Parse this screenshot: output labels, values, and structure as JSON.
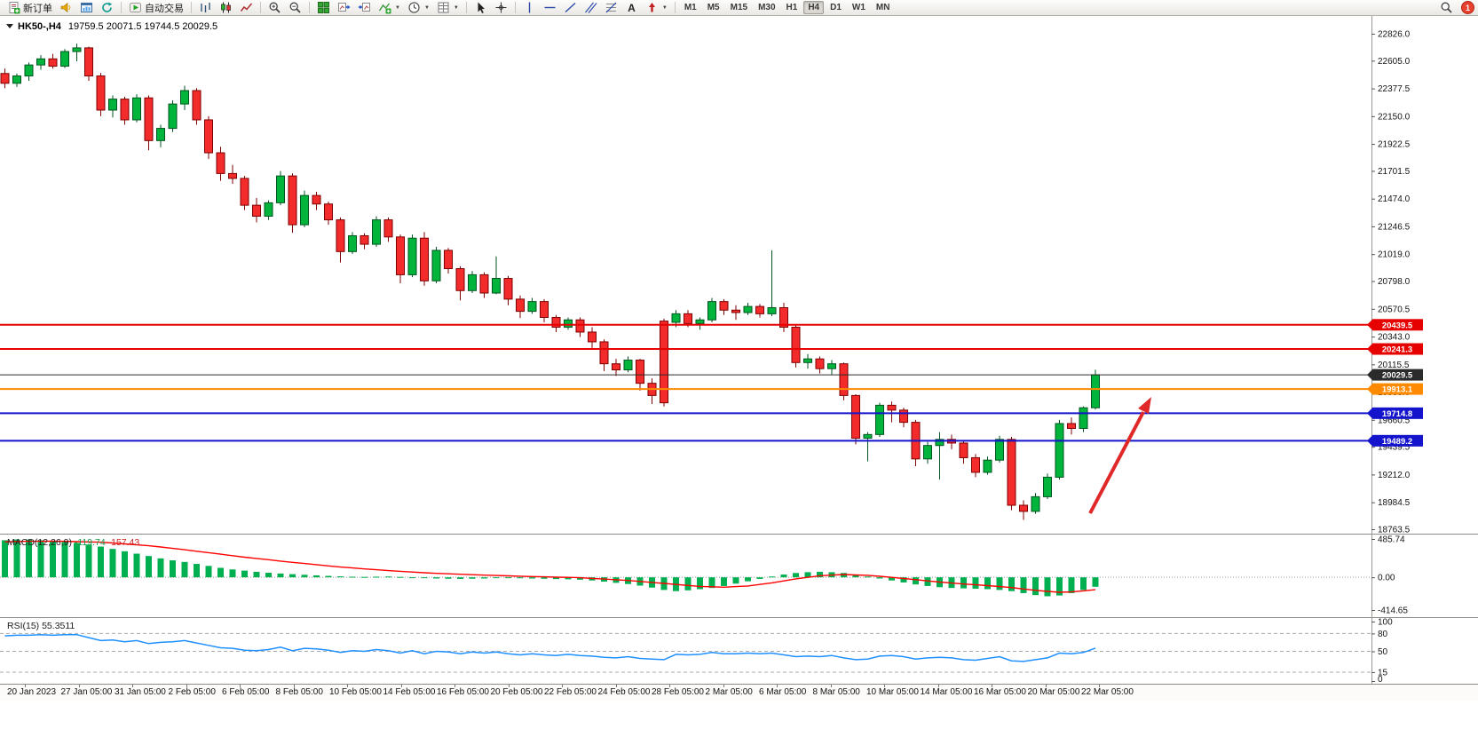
{
  "window": {
    "symbol_period": "HK50-,H4",
    "open": "19759.5",
    "high": "20071.5",
    "low": "19744.5",
    "close": "20029.5"
  },
  "toolbar": {
    "new_order": "新订单",
    "autotrading": "自动交易",
    "notification_count": "1",
    "buttons": [
      {
        "name": "new-order-button",
        "icon": "new-order-icon",
        "label": "新订单"
      },
      {
        "name": "sound-button",
        "icon": "sound-icon"
      },
      {
        "name": "market-watch-button",
        "icon": "chart-window-icon"
      },
      {
        "name": "refresh-button",
        "icon": "refresh-icon"
      },
      {
        "sep": true
      },
      {
        "name": "autotrading-button",
        "icon": "autotrading-icon",
        "label": "自动交易"
      },
      {
        "sep": true
      },
      {
        "name": "bar-chart-button",
        "icon": "bar-chart-icon"
      },
      {
        "name": "candlestick-button",
        "icon": "candlestick-icon"
      },
      {
        "name": "line-chart-button",
        "icon": "line-chart-icon"
      },
      {
        "sep": true
      },
      {
        "name": "zoom-in-button",
        "icon": "zoom-in-icon"
      },
      {
        "name": "zoom-out-button",
        "icon": "zoom-out-icon"
      },
      {
        "sep": true
      },
      {
        "name": "tile-windows-button",
        "icon": "tile-windows-icon"
      },
      {
        "name": "chart-shift-button",
        "icon": "chart-shift-icon"
      },
      {
        "name": "auto-scroll-button",
        "icon": "auto-scroll-icon"
      },
      {
        "name": "indicators-button",
        "icon": "indicators-icon",
        "caret": true
      },
      {
        "name": "periods-button",
        "icon": "clock-icon",
        "caret": true
      },
      {
        "name": "templates-button",
        "icon": "template-icon",
        "caret": true
      },
      {
        "sep": true
      },
      {
        "name": "cursor-button",
        "icon": "cursor-icon"
      },
      {
        "name": "crosshair-button",
        "icon": "crosshair-icon"
      },
      {
        "sep": true
      },
      {
        "name": "vline-button",
        "icon": "vline-icon"
      },
      {
        "name": "hline-button",
        "icon": "hline-icon"
      },
      {
        "name": "trendline-button",
        "icon": "trendline-icon"
      },
      {
        "name": "channel-button",
        "icon": "channel-icon"
      },
      {
        "name": "fibonacci-button",
        "icon": "fibonacci-icon"
      },
      {
        "name": "text-button",
        "icon": "text-icon"
      },
      {
        "name": "arrows-button",
        "icon": "arrows-icon",
        "caret": true
      },
      {
        "sep": true
      }
    ],
    "timeframes": [
      "M1",
      "M5",
      "M15",
      "M30",
      "H1",
      "H4",
      "D1",
      "W1",
      "MN"
    ],
    "active_timeframe": "H4"
  },
  "chart_data": {
    "type": "candlestick",
    "symbol": "HK50-",
    "timeframe": "H4",
    "title": "HK50-,H4 19759.5 20071.5 19744.5 20029.5",
    "price_range": {
      "top": 22826.0,
      "bottom": 18763.5
    },
    "style": {
      "up": "#00b43c",
      "up_stroke": "#00541f",
      "down": "#f42b2b",
      "down_stroke": "#7d0000"
    },
    "price_axis": [
      22826.0,
      22605.0,
      22377.5,
      22150.0,
      21922.5,
      21701.5,
      21474.0,
      21246.5,
      21019.0,
      20798.0,
      20570.5,
      20343.0,
      20115.5,
      19888.0,
      19660.5,
      19439.5,
      19212.0,
      18984.5,
      18763.5
    ],
    "hlines": [
      {
        "value": 20439.5,
        "label": "20439.5",
        "color": "#e60000",
        "width": 2
      },
      {
        "value": 20241.3,
        "label": "20241.3",
        "color": "#e60000",
        "width": 2
      },
      {
        "value": 20029.5,
        "label": "20029.5",
        "color": "#2b2b2b",
        "width": 1
      },
      {
        "value": 19913.1,
        "label": "19913.1",
        "color": "#ff8a00",
        "width": 2
      },
      {
        "value": 19714.8,
        "label": "19714.8",
        "color": "#1414cc",
        "width": 2
      },
      {
        "value": 19489.2,
        "label": "19489.2",
        "color": "#1414cc",
        "width": 2
      }
    ],
    "candles": [
      [
        22500,
        22540,
        22380,
        22420
      ],
      [
        22420,
        22500,
        22390,
        22480
      ],
      [
        22480,
        22590,
        22440,
        22570
      ],
      [
        22570,
        22650,
        22530,
        22620
      ],
      [
        22620,
        22660,
        22540,
        22560
      ],
      [
        22560,
        22700,
        22545,
        22680
      ],
      [
        22680,
        22745,
        22600,
        22710
      ],
      [
        22710,
        22720,
        22440,
        22480
      ],
      [
        22480,
        22505,
        22150,
        22200
      ],
      [
        22200,
        22320,
        22140,
        22290
      ],
      [
        22290,
        22310,
        22080,
        22120
      ],
      [
        22120,
        22330,
        22100,
        22300
      ],
      [
        22300,
        22320,
        21870,
        21950
      ],
      [
        21950,
        22080,
        21895,
        22050
      ],
      [
        22050,
        22280,
        22020,
        22250
      ],
      [
        22250,
        22400,
        22200,
        22360
      ],
      [
        22360,
        22380,
        22080,
        22120
      ],
      [
        22120,
        22150,
        21800,
        21850
      ],
      [
        21850,
        21900,
        21620,
        21680
      ],
      [
        21680,
        21750,
        21595,
        21640
      ],
      [
        21640,
        21660,
        21380,
        21420
      ],
      [
        21420,
        21480,
        21280,
        21330
      ],
      [
        21330,
        21460,
        21300,
        21440
      ],
      [
        21440,
        21700,
        21420,
        21660
      ],
      [
        21660,
        21680,
        21195,
        21260
      ],
      [
        21260,
        21540,
        21240,
        21500
      ],
      [
        21500,
        21530,
        21380,
        21430
      ],
      [
        21430,
        21450,
        21260,
        21300
      ],
      [
        21300,
        21320,
        20950,
        21040
      ],
      [
        21040,
        21200,
        21020,
        21170
      ],
      [
        21170,
        21190,
        21060,
        21100
      ],
      [
        21100,
        21330,
        21080,
        21300
      ],
      [
        21300,
        21320,
        21120,
        21160
      ],
      [
        21160,
        21180,
        20780,
        20850
      ],
      [
        20850,
        21180,
        20830,
        21150
      ],
      [
        21150,
        21200,
        20760,
        20800
      ],
      [
        20800,
        21080,
        20780,
        21050
      ],
      [
        21050,
        21070,
        20860,
        20900
      ],
      [
        20900,
        20920,
        20640,
        20720
      ],
      [
        20720,
        20880,
        20700,
        20850
      ],
      [
        20850,
        20870,
        20660,
        20700
      ],
      [
        20700,
        21000,
        20690,
        20820
      ],
      [
        20820,
        20840,
        20600,
        20650
      ],
      [
        20650,
        20680,
        20495,
        20550
      ],
      [
        20550,
        20660,
        20530,
        20630
      ],
      [
        20630,
        20650,
        20460,
        20500
      ],
      [
        20500,
        20520,
        20380,
        20420
      ],
      [
        20420,
        20500,
        20400,
        20480
      ],
      [
        20480,
        20500,
        20340,
        20380
      ],
      [
        20380,
        20420,
        20250,
        20300
      ],
      [
        20300,
        20320,
        20060,
        20120
      ],
      [
        20120,
        20160,
        20020,
        20070
      ],
      [
        20070,
        20180,
        20050,
        20150
      ],
      [
        20150,
        20160,
        19900,
        19960
      ],
      [
        19960,
        20000,
        19790,
        19860
      ],
      [
        20470,
        20490,
        19770,
        19800
      ],
      [
        20460,
        20560,
        20420,
        20530
      ],
      [
        20530,
        20560,
        20420,
        20450
      ],
      [
        20450,
        20500,
        20400,
        20480
      ],
      [
        20480,
        20660,
        20460,
        20630
      ],
      [
        20630,
        20650,
        20520,
        20560
      ],
      [
        20560,
        20600,
        20480,
        20540
      ],
      [
        20540,
        20620,
        20520,
        20590
      ],
      [
        20590,
        20610,
        20500,
        20530
      ],
      [
        20530,
        21050,
        20510,
        20580
      ],
      [
        20580,
        20620,
        20380,
        20420
      ],
      [
        20420,
        20440,
        20090,
        20130
      ],
      [
        20130,
        20200,
        20080,
        20160
      ],
      [
        20160,
        20180,
        20040,
        20080
      ],
      [
        20080,
        20150,
        20030,
        20120
      ],
      [
        20120,
        20130,
        19820,
        19860
      ],
      [
        19860,
        19870,
        19460,
        19510
      ],
      [
        19510,
        19560,
        19320,
        19540
      ],
      [
        19540,
        19800,
        19520,
        19780
      ],
      [
        19780,
        19810,
        19640,
        19740
      ],
      [
        19740,
        19760,
        19600,
        19640
      ],
      [
        19640,
        19660,
        19280,
        19340
      ],
      [
        19340,
        19480,
        19300,
        19450
      ],
      [
        19450,
        19560,
        19170,
        19500
      ],
      [
        19500,
        19540,
        19420,
        19470
      ],
      [
        19470,
        19490,
        19300,
        19350
      ],
      [
        19350,
        19380,
        19190,
        19230
      ],
      [
        19230,
        19360,
        19210,
        19330
      ],
      [
        19330,
        19530,
        19310,
        19500
      ],
      [
        19500,
        19520,
        18920,
        18960
      ],
      [
        18960,
        19000,
        18840,
        18910
      ],
      [
        18910,
        19060,
        18890,
        19030
      ],
      [
        19030,
        19220,
        19010,
        19190
      ],
      [
        19190,
        19660,
        19170,
        19630
      ],
      [
        19630,
        19680,
        19540,
        19590
      ],
      [
        19590,
        19770,
        19560,
        19759.5
      ],
      [
        19759.5,
        20071.5,
        19744.5,
        20029.5
      ]
    ],
    "arrow_annotation": {
      "from": [
        1228,
        578
      ],
      "to": [
        1295,
        448
      ],
      "color": "#e02828"
    },
    "macd": {
      "label": "MACD(12,26,9)",
      "value_main": "-119.74",
      "value_signal": "-157.43",
      "axis": [
        "485.74",
        "0.00",
        "-414.65"
      ],
      "max": 485.74,
      "min": -414.65,
      "histogram_color": "#00b050",
      "signal_color": "#ff0000",
      "histogram": [
        470,
        480,
        478,
        470,
        460,
        450,
        435,
        415,
        390,
        360,
        330,
        300,
        270,
        240,
        215,
        195,
        170,
        145,
        120,
        100,
        85,
        70,
        58,
        48,
        40,
        32,
        25,
        18,
        12,
        8,
        5,
        8,
        10,
        5,
        0,
        -8,
        -15,
        -18,
        -20,
        -18,
        -15,
        -10,
        -8,
        -12,
        -15,
        -18,
        -22,
        -25,
        -30,
        -40,
        -55,
        -70,
        -85,
        -105,
        -130,
        -160,
        -175,
        -165,
        -150,
        -135,
        -110,
        -80,
        -50,
        -20,
        10,
        35,
        55,
        65,
        70,
        65,
        55,
        35,
        10,
        -15,
        -40,
        -65,
        -90,
        -110,
        -125,
        -135,
        -140,
        -145,
        -150,
        -160,
        -175,
        -200,
        -225,
        -240,
        -230,
        -200,
        -160,
        -119.74
      ],
      "signal": [
        450,
        454,
        456,
        457,
        458,
        456,
        452,
        449,
        445,
        435,
        424,
        412,
        400,
        384,
        367,
        349,
        330,
        312,
        293,
        274,
        255,
        239,
        223,
        206,
        190,
        175,
        160,
        145,
        130,
        119,
        107,
        96,
        85,
        76,
        67,
        58,
        50,
        44,
        39,
        33,
        28,
        23,
        19,
        14,
        10,
        6,
        2,
        -1,
        -5,
        -14,
        -22,
        -31,
        -40,
        -52,
        -65,
        -77,
        -90,
        -103,
        -115,
        -120,
        -125,
        -118,
        -110,
        -90,
        -70,
        -45,
        -20,
        0,
        20,
        28,
        35,
        30,
        25,
        13,
        0,
        -15,
        -30,
        -45,
        -60,
        -73,
        -85,
        -95,
        -105,
        -117,
        -130,
        -148,
        -165,
        -178,
        -190,
        -185,
        -172,
        -157.43
      ]
    },
    "rsi": {
      "label": "RSI(15)",
      "value": "55.3511",
      "levels": [
        100,
        80,
        50,
        15,
        0
      ],
      "line_color": "#1e90ff",
      "series": [
        76,
        77,
        77,
        78,
        77,
        78,
        78,
        73,
        68,
        69,
        66,
        68,
        63,
        65,
        66,
        68,
        64,
        60,
        56,
        55,
        52,
        51,
        53,
        57,
        51,
        55,
        54,
        52,
        48,
        51,
        50,
        53,
        51,
        47,
        51,
        46,
        50,
        49,
        46,
        49,
        47,
        49,
        46,
        44,
        46,
        44,
        43,
        45,
        43,
        42,
        40,
        39,
        41,
        38,
        37,
        36,
        45,
        44,
        45,
        48,
        46,
        46,
        47,
        46,
        47,
        44,
        41,
        42,
        41,
        43,
        39,
        36,
        37,
        42,
        43,
        41,
        37,
        39,
        40,
        39,
        36,
        35,
        38,
        41,
        34,
        33,
        36,
        39,
        47,
        46,
        48,
        55.35
      ]
    },
    "time_labels": [
      "20 Jan 2023",
      "27 Jan 05:00",
      "31 Jan 05:00",
      "2 Feb 05:00",
      "6 Feb 05:00",
      "8 Feb 05:00",
      "10 Feb 05:00",
      "14 Feb 05:00",
      "16 Feb 05:00",
      "20 Feb 05:00",
      "22 Feb 05:00",
      "24 Feb 05:00",
      "28 Feb 05:00",
      "2 Mar 05:00",
      "6 Mar 05:00",
      "8 Mar 05:00",
      "10 Mar 05:00",
      "14 Mar 05:00",
      "16 Mar 05:00",
      "20 Mar 05:00",
      "22 Mar 05:00"
    ]
  }
}
